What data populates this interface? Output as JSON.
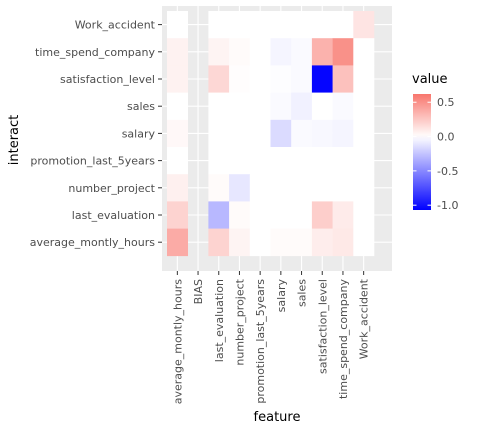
{
  "chart_data": {
    "type": "heatmap",
    "xlabel": "feature",
    "ylabel": "interact",
    "x_categories": [
      "average_montly_hours",
      "BIAS",
      "last_evaluation",
      "number_project",
      "promotion_last_5years",
      "salary",
      "sales",
      "satisfaction_level",
      "time_spend_company",
      "Work_accident"
    ],
    "y_categories": [
      "Work_accident",
      "time_spend_company",
      "satisfaction_level",
      "sales",
      "salary",
      "promotion_last_5years",
      "number_project",
      "last_evaluation",
      "average_montly_hours"
    ],
    "values": [
      [
        0.0,
        null,
        0.0,
        0.0,
        0.0,
        0.0,
        0.0,
        0.0,
        0.0,
        0.12
      ],
      [
        0.06,
        null,
        0.05,
        0.02,
        0.0,
        -0.04,
        -0.02,
        0.35,
        0.5,
        0.0
      ],
      [
        0.06,
        null,
        0.18,
        0.01,
        0.0,
        -0.01,
        -0.02,
        -1.05,
        0.28,
        0.0
      ],
      [
        0.0,
        null,
        0.0,
        0.0,
        0.0,
        -0.02,
        -0.06,
        0.0,
        -0.02,
        0.0
      ],
      [
        0.03,
        null,
        0.0,
        0.0,
        0.0,
        -0.15,
        -0.02,
        -0.03,
        -0.04,
        0.0
      ],
      [
        0.0,
        null,
        0.0,
        0.0,
        0.0,
        0.0,
        0.0,
        0.0,
        0.0,
        0.0
      ],
      [
        0.07,
        null,
        0.02,
        -0.1,
        0.0,
        0.0,
        0.0,
        0.0,
        0.0,
        0.0
      ],
      [
        0.2,
        null,
        -0.3,
        0.02,
        0.0,
        0.0,
        0.0,
        0.22,
        0.09,
        0.0
      ],
      [
        0.38,
        null,
        0.2,
        0.05,
        0.0,
        0.02,
        0.02,
        0.08,
        0.1,
        0.0
      ]
    ],
    "legend": {
      "title": "value",
      "breaks": [
        0.5,
        0.0,
        -0.5,
        -1.0
      ],
      "labels": [
        "0.5",
        "0.0",
        "-0.5",
        "-1.0"
      ],
      "range": [
        -1.07,
        0.62
      ],
      "colors": {
        "low": "#0000ff",
        "mid": "#ffffff",
        "high": "#f8766d"
      },
      "position": "right"
    },
    "panel_background": "#ebebeb",
    "grid": true
  }
}
